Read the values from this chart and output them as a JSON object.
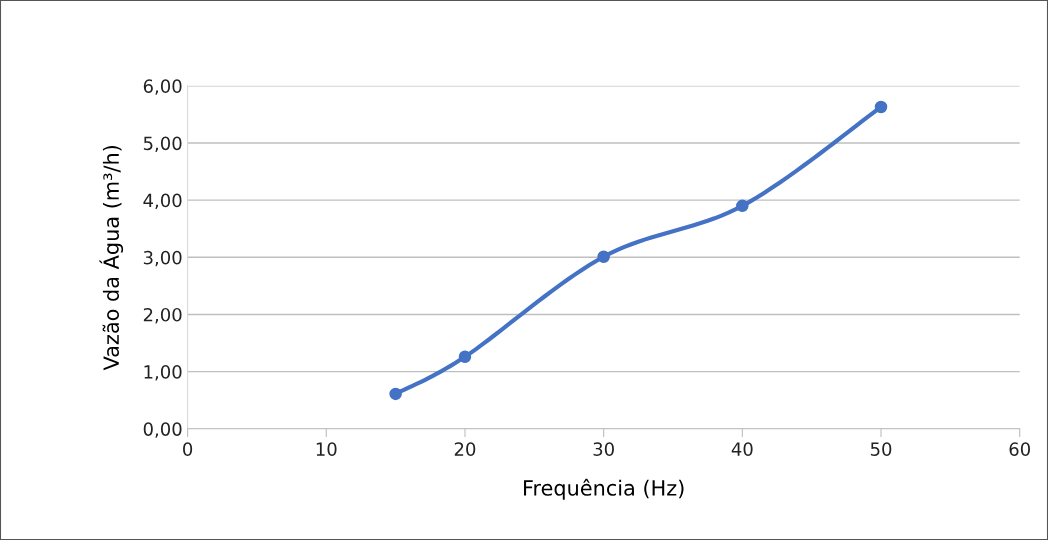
{
  "chart_data": {
    "type": "line",
    "xlabel": "Frequência (Hz)",
    "ylabel": "Vazão da Água (m³/h)",
    "x": [
      15,
      20,
      30,
      40,
      50
    ],
    "series": [
      {
        "color": "#4472c4",
        "values": [
          0.61,
          1.26,
          3.01,
          3.9,
          5.63
        ]
      }
    ],
    "xlim": [
      0,
      60
    ],
    "xticks": [
      0,
      10,
      20,
      30,
      40,
      50,
      60
    ],
    "ylim": [
      0,
      6
    ],
    "yticks": [
      {
        "value": 0,
        "label": "0,00"
      },
      {
        "value": 1,
        "label": "1,00"
      },
      {
        "value": 2,
        "label": "2,00"
      },
      {
        "value": 3,
        "label": "3,00"
      },
      {
        "value": 4,
        "label": "4,00"
      },
      {
        "value": 5,
        "label": "5,00"
      },
      {
        "value": 6,
        "label": "6,00"
      }
    ],
    "grid": "y",
    "marker": "circle",
    "line_style": "solid",
    "legend": false
  }
}
